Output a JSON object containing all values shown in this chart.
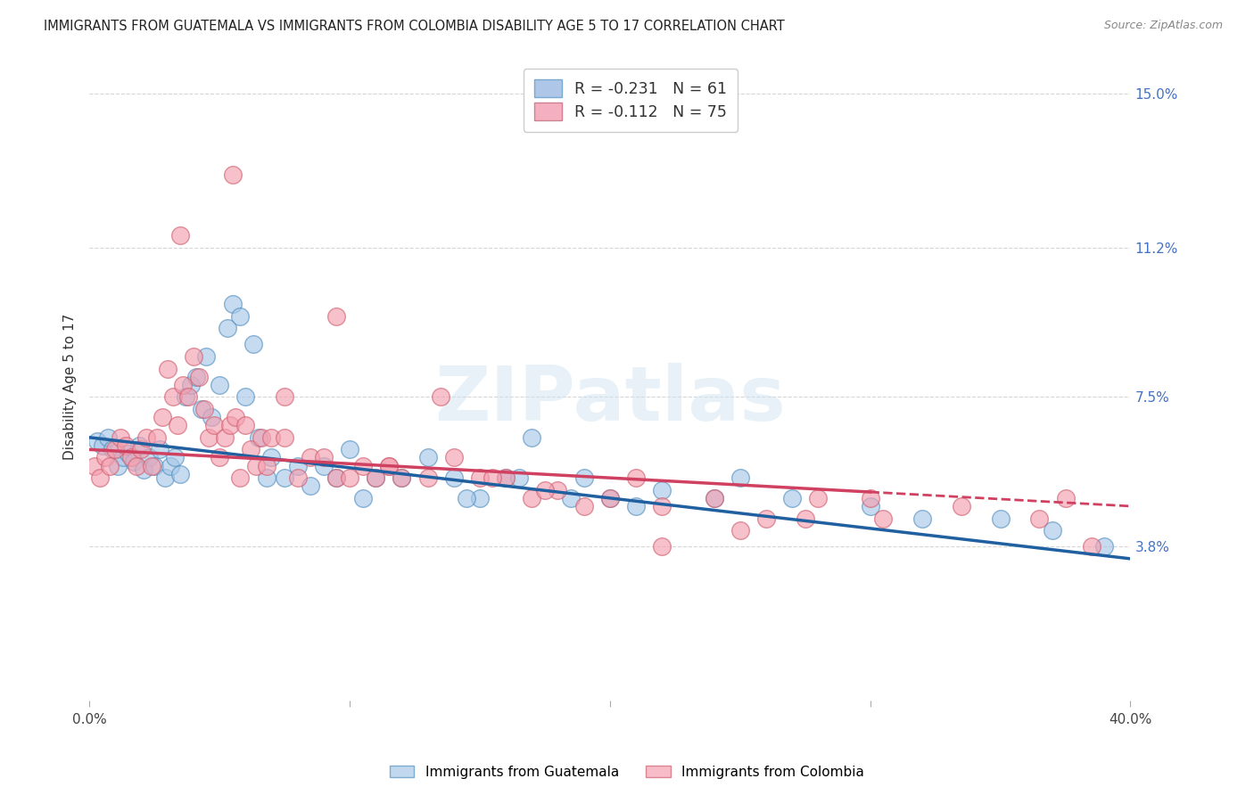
{
  "title": "IMMIGRANTS FROM GUATEMALA VS IMMIGRANTS FROM COLOMBIA DISABILITY AGE 5 TO 17 CORRELATION CHART",
  "source": "Source: ZipAtlas.com",
  "ylabel": "Disability Age 5 to 17",
  "xlim": [
    0.0,
    40.0
  ],
  "ylim": [
    0.0,
    15.5
  ],
  "yticks_right": [
    3.8,
    7.5,
    11.2,
    15.0
  ],
  "ytick_labels_right": [
    "3.8%",
    "7.5%",
    "11.2%",
    "15.0%"
  ],
  "series1_label": "Immigrants from Guatemala",
  "series2_label": "Immigrants from Colombia",
  "series1_color": "#a8c8e8",
  "series2_color": "#f4a0b0",
  "series1_edge": "#5590c0",
  "series2_edge": "#d06070",
  "trend1_color": "#2060a0",
  "trend2_color": "#d04060",
  "background_color": "#ffffff",
  "grid_color": "#cccccc",
  "watermark": "ZIPatlas",
  "R1": -0.231,
  "N1": 61,
  "R2": -0.112,
  "N2": 75,
  "trend1_x0": 0.0,
  "trend1_y0": 6.5,
  "trend1_x1": 40.0,
  "trend1_y1": 3.5,
  "trend2_x0": 0.0,
  "trend2_y0": 6.2,
  "trend2_x1": 40.0,
  "trend2_y1": 4.8,
  "scatter1_x": [
    0.3,
    0.5,
    0.7,
    0.9,
    1.1,
    1.3,
    1.5,
    1.7,
    1.9,
    2.1,
    2.3,
    2.5,
    2.7,
    2.9,
    3.1,
    3.3,
    3.5,
    3.7,
    3.9,
    4.1,
    4.3,
    4.5,
    4.7,
    5.0,
    5.3,
    5.5,
    5.8,
    6.0,
    6.3,
    6.5,
    6.8,
    7.0,
    7.5,
    8.0,
    8.5,
    9.0,
    9.5,
    10.0,
    10.5,
    11.0,
    12.0,
    13.0,
    14.0,
    15.0,
    16.0,
    17.0,
    19.0,
    20.0,
    21.0,
    22.0,
    24.0,
    25.0,
    27.0,
    30.0,
    32.0,
    35.0,
    37.0,
    39.0,
    14.5,
    16.5,
    18.5
  ],
  "scatter1_y": [
    6.4,
    6.3,
    6.5,
    6.2,
    5.8,
    6.0,
    6.1,
    5.9,
    6.3,
    5.7,
    6.0,
    5.8,
    6.2,
    5.5,
    5.8,
    6.0,
    5.6,
    7.5,
    7.8,
    8.0,
    7.2,
    8.5,
    7.0,
    7.8,
    9.2,
    9.8,
    9.5,
    7.5,
    8.8,
    6.5,
    5.5,
    6.0,
    5.5,
    5.8,
    5.3,
    5.8,
    5.5,
    6.2,
    5.0,
    5.5,
    5.5,
    6.0,
    5.5,
    5.0,
    5.5,
    6.5,
    5.5,
    5.0,
    4.8,
    5.2,
    5.0,
    5.5,
    5.0,
    4.8,
    4.5,
    4.5,
    4.2,
    3.8,
    5.0,
    5.5,
    5.0
  ],
  "scatter2_x": [
    0.2,
    0.4,
    0.6,
    0.8,
    1.0,
    1.2,
    1.4,
    1.6,
    1.8,
    2.0,
    2.2,
    2.4,
    2.6,
    2.8,
    3.0,
    3.2,
    3.4,
    3.6,
    3.8,
    4.0,
    4.2,
    4.4,
    4.6,
    4.8,
    5.0,
    5.2,
    5.4,
    5.6,
    5.8,
    6.0,
    6.2,
    6.4,
    6.6,
    6.8,
    7.0,
    7.5,
    8.0,
    8.5,
    9.0,
    9.5,
    10.0,
    10.5,
    11.0,
    11.5,
    12.0,
    13.0,
    14.0,
    15.0,
    16.0,
    17.0,
    18.0,
    19.0,
    20.0,
    21.0,
    22.0,
    24.0,
    26.0,
    28.0,
    30.0,
    5.5,
    9.5,
    13.5,
    17.5,
    22.0,
    25.0,
    27.5,
    30.5,
    33.5,
    36.5,
    37.5,
    38.5,
    3.5,
    7.5,
    11.5,
    15.5
  ],
  "scatter2_y": [
    5.8,
    5.5,
    6.0,
    5.8,
    6.2,
    6.5,
    6.3,
    6.0,
    5.8,
    6.2,
    6.5,
    5.8,
    6.5,
    7.0,
    8.2,
    7.5,
    6.8,
    7.8,
    7.5,
    8.5,
    8.0,
    7.2,
    6.5,
    6.8,
    6.0,
    6.5,
    6.8,
    7.0,
    5.5,
    6.8,
    6.2,
    5.8,
    6.5,
    5.8,
    6.5,
    6.5,
    5.5,
    6.0,
    6.0,
    5.5,
    5.5,
    5.8,
    5.5,
    5.8,
    5.5,
    5.5,
    6.0,
    5.5,
    5.5,
    5.0,
    5.2,
    4.8,
    5.0,
    5.5,
    4.8,
    5.0,
    4.5,
    5.0,
    5.0,
    13.0,
    9.5,
    7.5,
    5.2,
    3.8,
    4.2,
    4.5,
    4.5,
    4.8,
    4.5,
    5.0,
    3.8,
    11.5,
    7.5,
    5.8,
    5.5
  ]
}
